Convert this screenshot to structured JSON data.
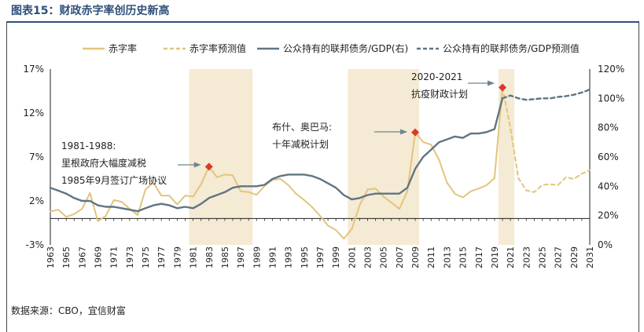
{
  "header": {
    "title": "图表15：财政赤字率创历史新高"
  },
  "footer": {
    "source": "数据来源：CBO，宜信财富"
  },
  "colors": {
    "deficit": "#e2c57c",
    "debt": "#5f7584",
    "shade": "#f5ead3",
    "marker": "#d93a2b",
    "title": "#2e4f7a"
  },
  "chart_data": {
    "type": "line",
    "title": "",
    "x": [
      1963,
      1964,
      1965,
      1966,
      1967,
      1968,
      1969,
      1970,
      1971,
      1972,
      1973,
      1974,
      1975,
      1976,
      1977,
      1978,
      1979,
      1980,
      1981,
      1982,
      1983,
      1984,
      1985,
      1986,
      1987,
      1988,
      1989,
      1990,
      1991,
      1992,
      1993,
      1994,
      1995,
      1996,
      1997,
      1998,
      1999,
      2000,
      2001,
      2002,
      2003,
      2004,
      2005,
      2006,
      2007,
      2008,
      2009,
      2010,
      2011,
      2012,
      2013,
      2014,
      2015,
      2016,
      2017,
      2018,
      2019,
      2020,
      2021,
      2022,
      2023,
      2024,
      2025,
      2026,
      2027,
      2028,
      2029,
      2030,
      2031
    ],
    "x_ticks": [
      "1963",
      "1965",
      "1967",
      "1969",
      "1971",
      "1973",
      "1975",
      "1977",
      "1979",
      "1981",
      "1983",
      "1985",
      "1987",
      "1989",
      "1991",
      "1993",
      "1995",
      "1997",
      "1999",
      "2001",
      "2003",
      "2005",
      "2007",
      "2009",
      "2011",
      "2013",
      "2015",
      "2017",
      "2019",
      "2021",
      "2023",
      "2025",
      "2027",
      "2029",
      "2031"
    ],
    "y_left": {
      "ticks": [
        "-3%",
        "2%",
        "7%",
        "12%",
        "17%"
      ],
      "range": [
        -3,
        17
      ]
    },
    "y_right": {
      "ticks": [
        "0%",
        "20%",
        "40%",
        "60%",
        "80%",
        "100%",
        "120%"
      ],
      "range": [
        0,
        120
      ]
    },
    "series": [
      {
        "name": "赤字率",
        "axis": "left",
        "style": "solid",
        "x": [
          1963,
          1964,
          1965,
          1966,
          1967,
          1968,
          1969,
          1970,
          1971,
          1972,
          1973,
          1974,
          1975,
          1976,
          1977,
          1978,
          1979,
          1980,
          1981,
          1982,
          1983,
          1984,
          1985,
          1986,
          1987,
          1988,
          1989,
          1990,
          1991,
          1992,
          1993,
          1994,
          1995,
          1996,
          1997,
          1998,
          1999,
          2000,
          2001,
          2002,
          2003,
          2004,
          2005,
          2006,
          2007,
          2008,
          2009,
          2010,
          2011,
          2012,
          2013,
          2014,
          2015,
          2016,
          2017,
          2018,
          2019,
          2020
        ],
        "values": [
          0.8,
          1.0,
          0.2,
          0.5,
          1.1,
          2.9,
          -0.3,
          0.3,
          2.1,
          1.9,
          1.1,
          0.4,
          3.3,
          4.1,
          2.6,
          2.6,
          1.6,
          2.6,
          2.5,
          3.9,
          5.9,
          4.7,
          5.0,
          4.9,
          3.1,
          3.0,
          2.7,
          3.7,
          4.4,
          4.5,
          3.8,
          2.8,
          2.1,
          1.3,
          0.3,
          -0.8,
          -1.3,
          -2.3,
          -1.2,
          1.5,
          3.3,
          3.4,
          2.5,
          1.8,
          1.1,
          3.1,
          9.8,
          8.7,
          8.4,
          6.7,
          4.1,
          2.8,
          2.4,
          3.1,
          3.4,
          3.8,
          4.6,
          14.9
        ]
      },
      {
        "name": "赤字率预测值",
        "axis": "left",
        "style": "dashed",
        "x": [
          2020,
          2021,
          2022,
          2023,
          2024,
          2025,
          2026,
          2027,
          2028,
          2029,
          2030,
          2031
        ],
        "values": [
          14.9,
          10.3,
          4.6,
          3.2,
          3.0,
          3.8,
          3.9,
          3.8,
          4.7,
          4.5,
          5.1,
          5.5
        ]
      },
      {
        "name": "公众持有的联邦债务/GDP(右)",
        "axis": "right",
        "style": "solid",
        "x": [
          1963,
          1964,
          1965,
          1966,
          1967,
          1968,
          1969,
          1970,
          1971,
          1972,
          1973,
          1974,
          1975,
          1976,
          1977,
          1978,
          1979,
          1980,
          1981,
          1982,
          1983,
          1984,
          1985,
          1986,
          1987,
          1988,
          1989,
          1990,
          1991,
          1992,
          1993,
          1994,
          1995,
          1996,
          1997,
          1998,
          1999,
          2000,
          2001,
          2002,
          2003,
          2004,
          2005,
          2006,
          2007,
          2008,
          2009,
          2010,
          2011,
          2012,
          2013,
          2014,
          2015,
          2016,
          2017,
          2018,
          2019,
          2020
        ],
        "values": [
          39,
          37,
          35,
          32,
          30,
          30,
          27,
          26,
          26,
          25,
          24,
          23,
          25,
          27,
          28,
          27,
          25,
          26,
          25,
          28,
          32,
          34,
          36,
          39,
          40,
          40,
          40,
          41,
          45,
          47,
          48,
          48,
          48,
          47,
          45,
          42,
          39,
          34,
          31,
          32,
          34,
          35,
          35,
          35,
          35,
          39,
          52,
          60,
          65,
          70,
          72,
          74,
          73,
          76,
          76,
          77,
          79,
          100
        ]
      },
      {
        "name": "公众持有的联邦债务/GDP预测值",
        "axis": "right",
        "style": "dashed",
        "x": [
          2020,
          2021,
          2022,
          2023,
          2024,
          2025,
          2026,
          2027,
          2028,
          2029,
          2030,
          2031
        ],
        "values": [
          100,
          102,
          100,
          99,
          99.5,
          100,
          100,
          101,
          101.5,
          102.5,
          104,
          106
        ]
      }
    ],
    "shaded_periods": [
      [
        1981,
        1988
      ],
      [
        2001,
        2009
      ],
      [
        2020,
        2021
      ]
    ],
    "markers": [
      {
        "x": 1983,
        "y": 5.9
      },
      {
        "x": 2009,
        "y": 9.8
      },
      {
        "x": 2020,
        "y": 14.9
      }
    ],
    "annotations": [
      {
        "x": 1981.5,
        "lines": [
          "1981-1988:",
          "里根政府大幅度减税",
          "1985年9月签订广场协议"
        ]
      },
      {
        "x": 2001,
        "lines": [
          "布什、奥巴马:",
          "十年减税计划"
        ]
      },
      {
        "x": 2020,
        "lines": [
          "2020-2021",
          "抗疫财政计划"
        ]
      }
    ],
    "legend_position": "top"
  }
}
